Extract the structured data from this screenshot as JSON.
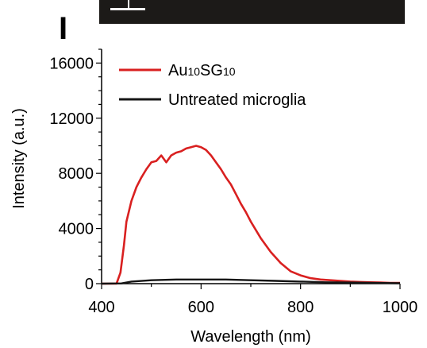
{
  "panel_label": "I",
  "chart_data": {
    "type": "line",
    "title": "",
    "xlabel": "Wavelength (nm)",
    "ylabel": "Intensity (a.u.)",
    "xlim": [
      400,
      1000
    ],
    "ylim": [
      0,
      17000
    ],
    "xticks": [
      400,
      600,
      800,
      1000
    ],
    "yticks": [
      0,
      4000,
      8000,
      12000,
      16000
    ],
    "legend_position": "top-left",
    "grid": false,
    "series": [
      {
        "name": "Au10SG10",
        "legend_parts": [
          {
            "text": "Au",
            "sub": false
          },
          {
            "text": "10",
            "sub": true
          },
          {
            "text": "SG",
            "sub": false
          },
          {
            "text": "10",
            "sub": true
          }
        ],
        "color": "#d92020",
        "x": [
          400,
          430,
          438,
          445,
          450,
          460,
          470,
          480,
          490,
          500,
          510,
          520,
          530,
          540,
          550,
          560,
          570,
          580,
          590,
          600,
          610,
          620,
          630,
          640,
          650,
          660,
          670,
          680,
          690,
          700,
          720,
          740,
          760,
          780,
          800,
          820,
          840,
          860,
          880,
          900,
          920,
          940,
          960,
          980,
          1000
        ],
        "y": [
          0,
          0,
          800,
          2800,
          4500,
          6000,
          7000,
          7700,
          8300,
          8800,
          8900,
          9300,
          8800,
          9300,
          9500,
          9600,
          9800,
          9900,
          10000,
          9900,
          9700,
          9300,
          8800,
          8300,
          7700,
          7200,
          6500,
          5800,
          5200,
          4500,
          3300,
          2300,
          1500,
          900,
          600,
          400,
          300,
          250,
          200,
          150,
          120,
          100,
          80,
          60,
          50
        ]
      },
      {
        "name": "Untreated microglia",
        "color": "#151515",
        "x": [
          400,
          440,
          460,
          500,
          550,
          600,
          650,
          700,
          750,
          800,
          850,
          900,
          950,
          1000
        ],
        "y": [
          0,
          20,
          150,
          250,
          300,
          300,
          300,
          250,
          200,
          150,
          100,
          80,
          50,
          30
        ]
      }
    ]
  }
}
